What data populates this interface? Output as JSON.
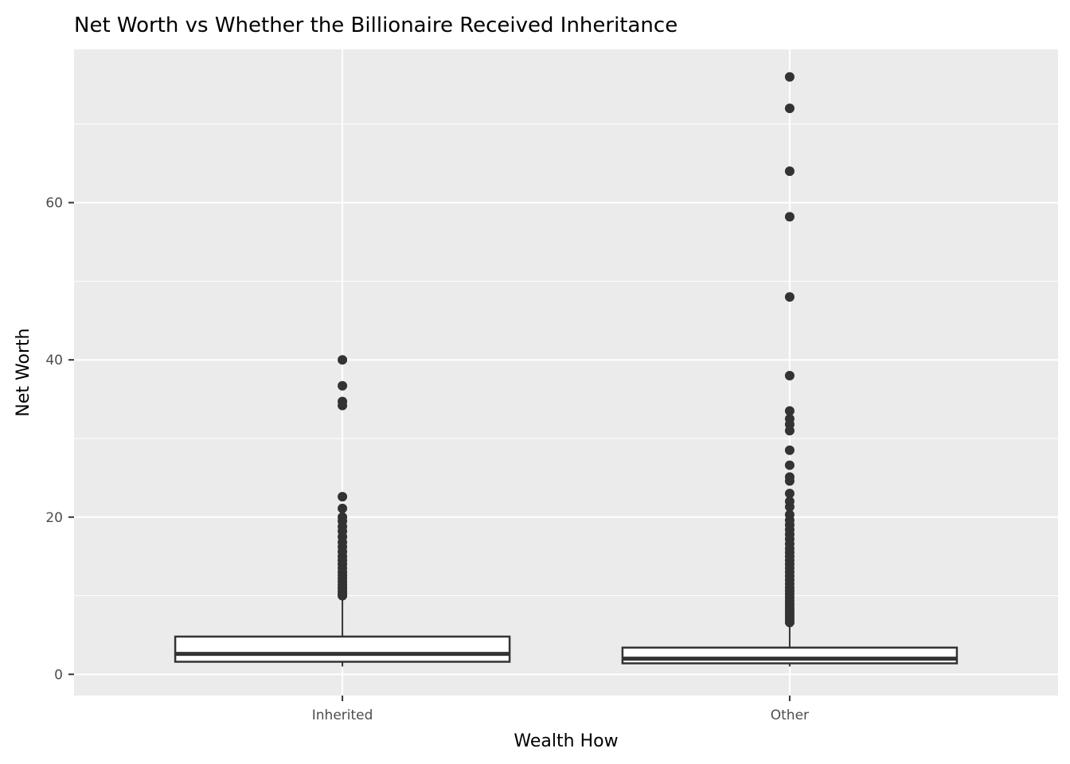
{
  "chart_data": {
    "type": "boxplot",
    "title": "Net Worth vs Whether the Billionaire Received Inheritance",
    "xlabel": "Wealth How",
    "ylabel": "Net Worth",
    "ylim": [
      -2.7,
      79.5
    ],
    "y_ticks": [
      0,
      20,
      40,
      60
    ],
    "y_minor_ticks": [
      10,
      30,
      50,
      70
    ],
    "grid": true,
    "categories": [
      "Inherited",
      "Other"
    ],
    "boxes": [
      {
        "category": "Inherited",
        "whisker_low": 1.0,
        "q1": 1.6,
        "median": 2.6,
        "q3": 4.8,
        "whisker_high": 9.7,
        "outliers": [
          10.0,
          10.3,
          10.6,
          11.0,
          11.4,
          11.8,
          12.2,
          12.6,
          13.0,
          13.5,
          14.0,
          14.5,
          15.0,
          15.6,
          16.2,
          16.8,
          17.5,
          18.2,
          18.8,
          19.5,
          20.0,
          21.1,
          22.6,
          34.2,
          34.7,
          36.7,
          40.0
        ]
      },
      {
        "category": "Other",
        "whisker_low": 1.0,
        "q1": 1.4,
        "median": 2.0,
        "q3": 3.4,
        "whisker_high": 6.4,
        "outliers": [
          6.6,
          6.9,
          7.2,
          7.5,
          7.8,
          8.1,
          8.4,
          8.7,
          9.0,
          9.4,
          9.8,
          10.2,
          10.6,
          11.0,
          11.5,
          12.0,
          12.5,
          13.0,
          13.5,
          14.0,
          14.5,
          15.0,
          15.5,
          16.0,
          16.6,
          17.2,
          17.8,
          18.4,
          19.0,
          19.6,
          20.3,
          21.3,
          22.0,
          23.0,
          24.6,
          25.1,
          26.6,
          28.5,
          31.0,
          31.8,
          32.5,
          33.5,
          38.0,
          48.0,
          58.2,
          64.0,
          72.0,
          76.0
        ]
      }
    ],
    "colors": {
      "panel_background": "#ebebeb",
      "grid_line": "#ffffff",
      "box_fill": "#ffffff",
      "box_stroke": "#333333",
      "point": "#333333",
      "tick": "#333333",
      "tick_label": "#4d4d4d"
    }
  }
}
